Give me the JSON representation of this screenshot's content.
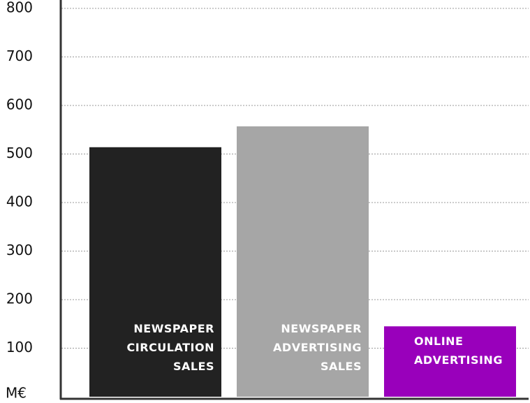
{
  "chart_data": {
    "type": "bar",
    "y_label": "M€",
    "categories": [
      "NEWSPAPER CIRCULATION SALES",
      "NEWSPAPER ADVERTISING SALES",
      "ONLINE ADVERTISING"
    ],
    "values": [
      514,
      557,
      145
    ],
    "colors": [
      "#222222",
      "#a6a6a6",
      "#9900bb"
    ],
    "ylim": [
      0,
      800
    ],
    "yticks": [
      100,
      200,
      300,
      400,
      500,
      600,
      700,
      800
    ],
    "grid": true
  }
}
